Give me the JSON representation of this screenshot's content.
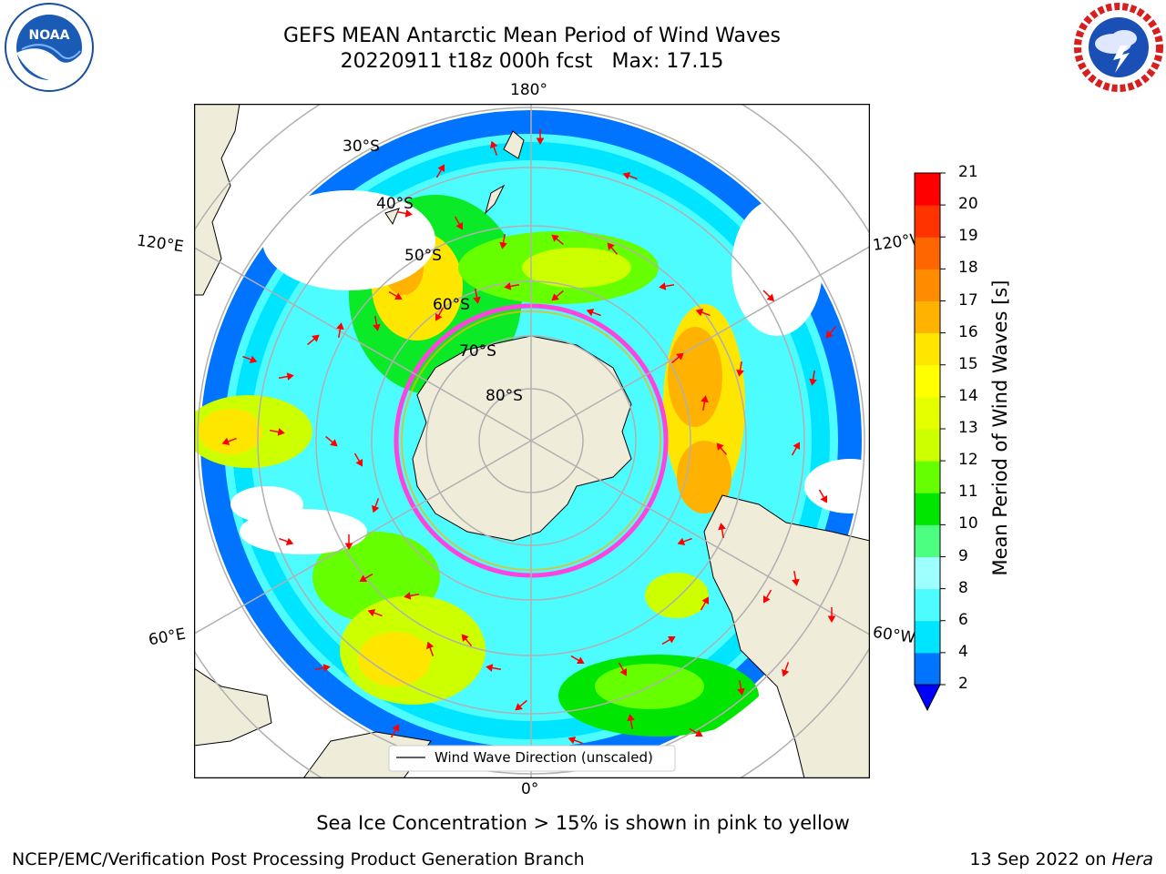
{
  "title": {
    "line1": "GEFS MEAN Antarctic Mean Period of Wind Waves",
    "line2": "20220911 t18z 000h fcst   Max: 17.15"
  },
  "logos": {
    "left": "NOAA",
    "left_ring": "NATIONAL OCEANIC AND ATMOSPHERIC ADMINISTRATION · U.S. DEPARTMENT OF COMMERCE",
    "right_ring": "NATIONAL WEATHER SERVICE"
  },
  "map": {
    "lon_labels": {
      "top": "180°",
      "bottom": "0°",
      "upper_left": "120°E",
      "upper_right": "120°W",
      "lower_left": "60°E",
      "lower_right": "60°W"
    },
    "lat_labels": [
      "30°S",
      "40°S",
      "50°S",
      "60°S",
      "70°S",
      "80°S"
    ],
    "legend": "Wind Wave Direction (unscaled)"
  },
  "colorbar": {
    "label": "Mean Period of Wind Waves [s]",
    "ticks": [
      "2",
      "4",
      "6",
      "8",
      "9",
      "10",
      "11",
      "12",
      "13",
      "14",
      "15",
      "16",
      "17",
      "18",
      "19",
      "20",
      "21"
    ],
    "colors": [
      "#0073ff",
      "#00e5ff",
      "#4dfcff",
      "#9effff",
      "#4dff80",
      "#00e600",
      "#66ff00",
      "#ccff00",
      "#e6ff00",
      "#ffff00",
      "#ffe600",
      "#ffb300",
      "#ff8c00",
      "#ff6600",
      "#ff3300",
      "#ff0000"
    ],
    "extend_color": "#0000ff"
  },
  "footer": {
    "note": "Sea Ice Concentration > 15% is shown in pink to yellow",
    "credit": "NCEP/EMC/Verification Post Processing Product Generation Branch",
    "date": "13 Sep 2022 on",
    "host": "Hera"
  },
  "colors": {
    "land": "#efedda",
    "ice_edge": "#ff44dd",
    "arrow": "#ff0000",
    "grid": "#b0b0b0"
  }
}
